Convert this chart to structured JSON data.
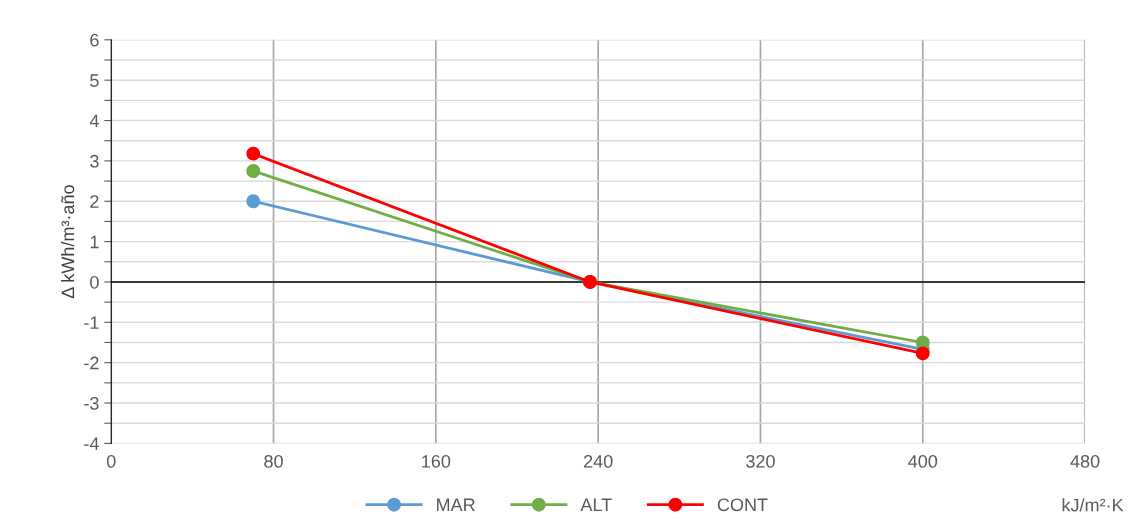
{
  "chart_data": {
    "type": "line",
    "xlabel": "kJ/m²·K",
    "ylabel": "Δ kWh/m³·año",
    "x": [
      70,
      236,
      400
    ],
    "series": [
      {
        "name": "MAR",
        "color": "#5b9bd5",
        "values": [
          2.0,
          0,
          -1.67
        ]
      },
      {
        "name": "ALT",
        "color": "#70ad47",
        "values": [
          2.75,
          0,
          -1.5
        ]
      },
      {
        "name": "CONT",
        "color": "#ff0000",
        "values": [
          3.18,
          0,
          -1.77
        ]
      }
    ],
    "xlim": [
      0,
      480
    ],
    "xticks": [
      0,
      80,
      160,
      240,
      320,
      400,
      480
    ],
    "ylim": [
      -4,
      6
    ],
    "yticks": [
      -4,
      {
        "value": -3.5,
        "label": null
      },
      -3,
      {
        "value": -2.5,
        "label": null
      },
      -2,
      {
        "value": -1.5,
        "label": null
      },
      -1,
      {
        "value": -0.5,
        "label": null
      },
      0,
      {
        "value": 0.5,
        "label": null
      },
      1,
      {
        "value": 1.5,
        "label": null
      },
      2,
      {
        "value": 2.5,
        "label": null
      },
      3,
      {
        "value": 3.5,
        "label": null
      },
      4,
      {
        "value": 4.5,
        "label": null
      },
      5,
      {
        "value": 5.5,
        "label": null
      },
      6
    ],
    "ref_lines": [
      {
        "axis": "y",
        "value": 0,
        "color": "#000000"
      }
    ],
    "grid": true,
    "legend": "bottom",
    "marker": "circle",
    "line_style": "solid"
  }
}
